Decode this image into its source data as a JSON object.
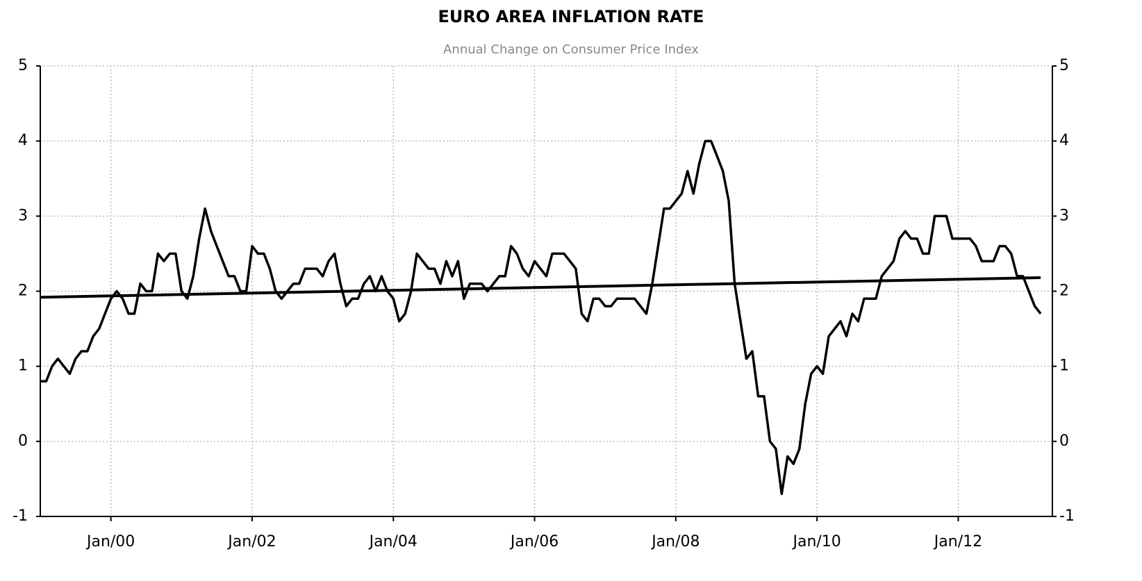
{
  "chart_data": {
    "type": "line",
    "title": "EURO AREA INFLATION RATE",
    "subtitle": "Annual Change on Consumer Price Index",
    "x": [
      "1999-01",
      "1999-02",
      "1999-03",
      "1999-04",
      "1999-05",
      "1999-06",
      "1999-07",
      "1999-08",
      "1999-09",
      "1999-10",
      "1999-11",
      "1999-12",
      "2000-01",
      "2000-02",
      "2000-03",
      "2000-04",
      "2000-05",
      "2000-06",
      "2000-07",
      "2000-08",
      "2000-09",
      "2000-10",
      "2000-11",
      "2000-12",
      "2001-01",
      "2001-02",
      "2001-03",
      "2001-04",
      "2001-05",
      "2001-06",
      "2001-07",
      "2001-08",
      "2001-09",
      "2001-10",
      "2001-11",
      "2001-12",
      "2002-01",
      "2002-02",
      "2002-03",
      "2002-04",
      "2002-05",
      "2002-06",
      "2002-07",
      "2002-08",
      "2002-09",
      "2002-10",
      "2002-11",
      "2002-12",
      "2003-01",
      "2003-02",
      "2003-03",
      "2003-04",
      "2003-05",
      "2003-06",
      "2003-07",
      "2003-08",
      "2003-09",
      "2003-10",
      "2003-11",
      "2003-12",
      "2004-01",
      "2004-02",
      "2004-03",
      "2004-04",
      "2004-05",
      "2004-06",
      "2004-07",
      "2004-08",
      "2004-09",
      "2004-10",
      "2004-11",
      "2004-12",
      "2005-01",
      "2005-02",
      "2005-03",
      "2005-04",
      "2005-05",
      "2005-06",
      "2005-07",
      "2005-08",
      "2005-09",
      "2005-10",
      "2005-11",
      "2005-12",
      "2006-01",
      "2006-02",
      "2006-03",
      "2006-04",
      "2006-05",
      "2006-06",
      "2006-07",
      "2006-08",
      "2006-09",
      "2006-10",
      "2006-11",
      "2006-12",
      "2007-01",
      "2007-02",
      "2007-03",
      "2007-04",
      "2007-05",
      "2007-06",
      "2007-07",
      "2007-08",
      "2007-09",
      "2007-10",
      "2007-11",
      "2007-12",
      "2008-01",
      "2008-02",
      "2008-03",
      "2008-04",
      "2008-05",
      "2008-06",
      "2008-07",
      "2008-08",
      "2008-09",
      "2008-10",
      "2008-11",
      "2008-12",
      "2009-01",
      "2009-02",
      "2009-03",
      "2009-04",
      "2009-05",
      "2009-06",
      "2009-07",
      "2009-08",
      "2009-09",
      "2009-10",
      "2009-11",
      "2009-12",
      "2010-01",
      "2010-02",
      "2010-03",
      "2010-04",
      "2010-05",
      "2010-06",
      "2010-07",
      "2010-08",
      "2010-09",
      "2010-10",
      "2010-11",
      "2010-12",
      "2011-01",
      "2011-02",
      "2011-03",
      "2011-04",
      "2011-05",
      "2011-06",
      "2011-07",
      "2011-08",
      "2011-09",
      "2011-10",
      "2011-11",
      "2011-12",
      "2012-01",
      "2012-02",
      "2012-03",
      "2012-04",
      "2012-05",
      "2012-06",
      "2012-07",
      "2012-08",
      "2012-09",
      "2012-10",
      "2012-11",
      "2012-12",
      "2013-01",
      "2013-02",
      "2013-03"
    ],
    "series": [
      {
        "color": "#000000",
        "values": [
          0.8,
          0.8,
          1.0,
          1.1,
          1.0,
          0.9,
          1.1,
          1.2,
          1.2,
          1.4,
          1.5,
          1.7,
          1.9,
          2.0,
          1.9,
          1.7,
          1.7,
          2.1,
          2.0,
          2.0,
          2.5,
          2.4,
          2.5,
          2.5,
          2.0,
          1.9,
          2.2,
          2.7,
          3.1,
          2.8,
          2.6,
          2.4,
          2.2,
          2.2,
          2.0,
          2.0,
          2.6,
          2.5,
          2.5,
          2.3,
          2.0,
          1.9,
          2.0,
          2.1,
          2.1,
          2.3,
          2.3,
          2.3,
          2.2,
          2.4,
          2.5,
          2.1,
          1.8,
          1.9,
          1.9,
          2.1,
          2.2,
          2.0,
          2.2,
          2.0,
          1.9,
          1.6,
          1.7,
          2.0,
          2.5,
          2.4,
          2.3,
          2.3,
          2.1,
          2.4,
          2.2,
          2.4,
          1.9,
          2.1,
          2.1,
          2.1,
          2.0,
          2.1,
          2.2,
          2.2,
          2.6,
          2.5,
          2.3,
          2.2,
          2.4,
          2.3,
          2.2,
          2.5,
          2.5,
          2.5,
          2.4,
          2.3,
          1.7,
          1.6,
          1.9,
          1.9,
          1.8,
          1.8,
          1.9,
          1.9,
          1.9,
          1.9,
          1.8,
          1.7,
          2.1,
          2.6,
          3.1,
          3.1,
          3.2,
          3.3,
          3.6,
          3.3,
          3.7,
          4.0,
          4.0,
          3.8,
          3.6,
          3.2,
          2.1,
          1.6,
          1.1,
          1.2,
          0.6,
          0.6,
          0.0,
          -0.1,
          -0.7,
          -0.2,
          -0.3,
          -0.1,
          0.5,
          0.9,
          1.0,
          0.9,
          1.4,
          1.5,
          1.6,
          1.4,
          1.7,
          1.6,
          1.9,
          1.9,
          1.9,
          2.2,
          2.3,
          2.4,
          2.7,
          2.8,
          2.7,
          2.7,
          2.5,
          2.5,
          3.0,
          3.0,
          3.0,
          2.7,
          2.7,
          2.7,
          2.7,
          2.6,
          2.4,
          2.4,
          2.4,
          2.6,
          2.6,
          2.5,
          2.2,
          2.2,
          2.0,
          1.8,
          1.7
        ]
      }
    ],
    "trend": {
      "color": "#000000",
      "x": [
        "1999-01",
        "2013-03"
      ],
      "values": [
        1.92,
        2.18
      ]
    },
    "xlim": [
      "1999-01",
      "2013-05"
    ],
    "xticks": [
      {
        "value": "2000-01",
        "label": "Jan/00"
      },
      {
        "value": "2002-01",
        "label": "Jan/02"
      },
      {
        "value": "2004-01",
        "label": "Jan/04"
      },
      {
        "value": "2006-01",
        "label": "Jan/06"
      },
      {
        "value": "2008-01",
        "label": "Jan/08"
      },
      {
        "value": "2010-01",
        "label": "Jan/10"
      },
      {
        "value": "2012-01",
        "label": "Jan/12"
      }
    ],
    "ylim": [
      -1,
      5
    ],
    "yticks": [
      -1,
      0,
      1,
      2,
      3,
      4,
      5
    ],
    "y2lim": [
      -1,
      5
    ],
    "y2ticks": [
      -1,
      0,
      1,
      2,
      3,
      4,
      5
    ],
    "grid": true
  }
}
